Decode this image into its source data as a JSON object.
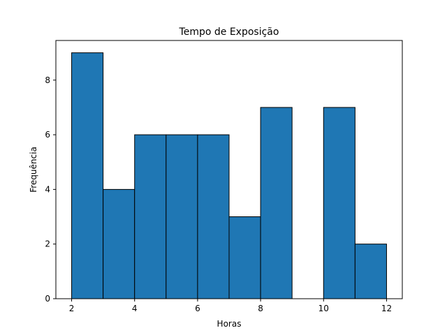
{
  "chart_data": {
    "type": "bar",
    "title": "Tempo de Exposição",
    "xlabel": "Horas",
    "ylabel": "Frequência",
    "bins": [
      {
        "start": 2,
        "end": 3,
        "count": 9
      },
      {
        "start": 3,
        "end": 4,
        "count": 4
      },
      {
        "start": 4,
        "end": 5,
        "count": 6
      },
      {
        "start": 5,
        "end": 6,
        "count": 6
      },
      {
        "start": 6,
        "end": 7,
        "count": 6
      },
      {
        "start": 7,
        "end": 8,
        "count": 3
      },
      {
        "start": 8,
        "end": 9,
        "count": 7
      },
      {
        "start": 9,
        "end": 10,
        "count": 0
      },
      {
        "start": 10,
        "end": 11,
        "count": 7
      },
      {
        "start": 11,
        "end": 12,
        "count": 2
      }
    ],
    "xlim": [
      1.5,
      12.5
    ],
    "ylim": [
      0,
      9.45
    ],
    "xticks": [
      2,
      4,
      6,
      8,
      10,
      12
    ],
    "yticks": [
      0,
      2,
      4,
      6,
      8
    ],
    "bar_color": "#1f77b4",
    "edge_color": "#000000",
    "grid": false,
    "legend": false
  }
}
